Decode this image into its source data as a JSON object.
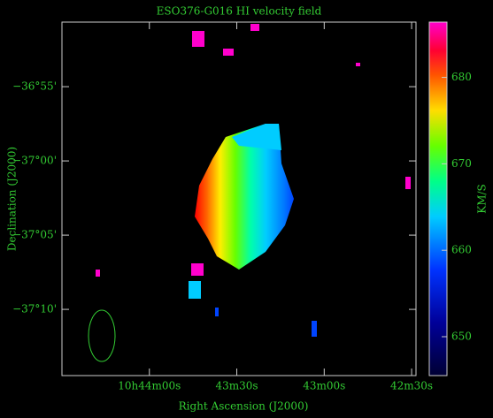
{
  "chart_data": {
    "type": "image",
    "title": "ESO376-G016  HI velocity field",
    "xlabel": "Right Ascension (J2000)",
    "ylabel": "Declination (J2000)",
    "xlim": [
      38670,
      38548.5
    ],
    "xticks": [
      {
        "value": 38640,
        "label": "10h44m00s"
      },
      {
        "value": 38610,
        "label": "43m30s"
      },
      {
        "value": 38580,
        "label": "43m00s"
      },
      {
        "value": 38550,
        "label": "42m30s"
      }
    ],
    "ylim": [
      -2234.46,
      -2210.65
    ],
    "yticks": [
      {
        "value": -2215,
        "label": "−36°55'"
      },
      {
        "value": -2220,
        "label": "−37°00'"
      },
      {
        "value": -2225,
        "label": "−37°05'"
      },
      {
        "value": -2230,
        "label": "−37°10'"
      }
    ],
    "colorbar": {
      "label": "KM/S",
      "lim": [
        645.5,
        686.4
      ],
      "ticks": [
        650,
        660,
        670,
        680
      ]
    }
  }
}
